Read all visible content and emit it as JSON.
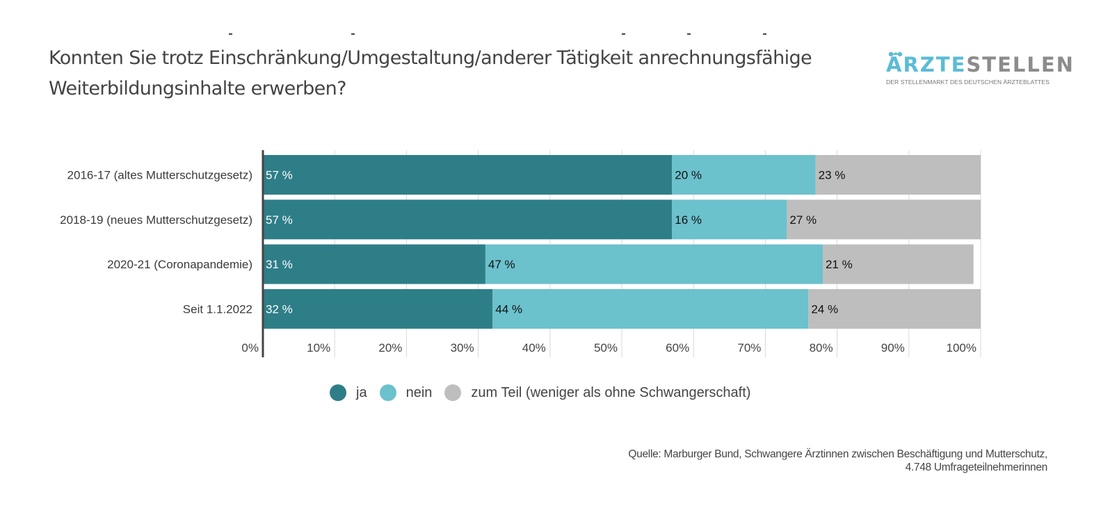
{
  "title": "Konnten Sie trotz Einschränkung/Umgestaltung/anderer Tätigkeit anrechnungsfähige Weiterbildungsinhalte erwerben?",
  "logo": {
    "brand_part1": "ÄRZTE",
    "brand_part2": "STELLEN",
    "tagline": "DER STELLENMARKT DES DEUTSCHEN ÄRZTEBLATTES",
    "colors": {
      "primary": "#5bbcd6",
      "secondary": "#8c8c8c"
    }
  },
  "source": {
    "line1": "Quelle: Marburger Bund, Schwangere Ärztinnen zwischen Beschäftigung und Mutterschutz,",
    "line2": "4.748 Umfrageteilnehmerinnen"
  },
  "chart_data": {
    "type": "bar",
    "orientation": "horizontal",
    "stacked": true,
    "title": "Konnten Sie trotz Einschränkung/Umgestaltung/anderer Tätigkeit anrechnungsfähige Weiterbildungsinhalte erwerben?",
    "xlabel": "",
    "ylabel": "",
    "xlim": [
      0,
      100
    ],
    "x_ticks": [
      "0%",
      "10%",
      "20%",
      "30%",
      "40%",
      "50%",
      "60%",
      "70%",
      "80%",
      "90%",
      "100%"
    ],
    "grid": true,
    "legend_position": "bottom-center",
    "categories": [
      "2016-17 (altes Mutterschutzgesetz)",
      "2018-19 (neues Mutterschutzgesetz)",
      "2020-21 (Coronapandemie)",
      "Seit 1.1.2022"
    ],
    "series": [
      {
        "name": "ja",
        "color": "#2e7e88",
        "label_color": "#ffffff",
        "values": [
          57,
          57,
          31,
          32
        ],
        "labels": [
          "57 %",
          "57 %",
          "31 %",
          "32 %"
        ]
      },
      {
        "name": "nein",
        "color": "#6bc1cc",
        "label_color": "#111111",
        "values": [
          20,
          16,
          47,
          44
        ],
        "labels": [
          "20 %",
          "16 %",
          "47 %",
          "44 %"
        ]
      },
      {
        "name": "zum Teil (weniger als ohne Schwangerschaft)",
        "color": "#bebebe",
        "label_color": "#111111",
        "values": [
          23,
          27,
          21,
          24
        ],
        "labels": [
          "23 %",
          "27 %",
          "21 %",
          "24 %"
        ]
      }
    ]
  }
}
